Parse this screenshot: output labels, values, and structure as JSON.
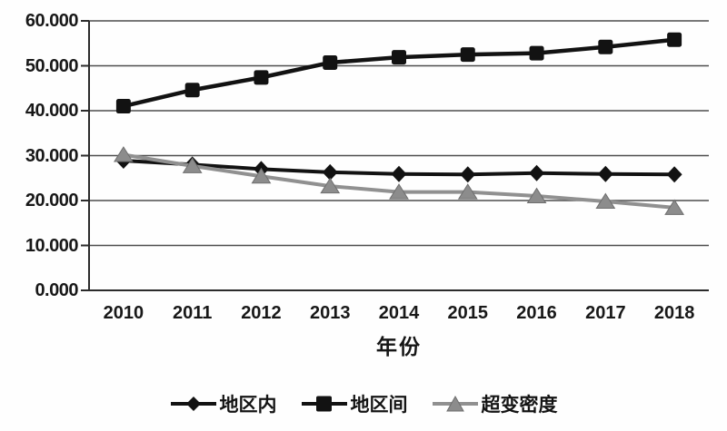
{
  "chart_data": {
    "type": "line",
    "title": "",
    "xlabel": "年份",
    "ylabel": "",
    "x": [
      2010,
      2011,
      2012,
      2013,
      2014,
      2015,
      2016,
      2017,
      2018
    ],
    "y_tick_labels": [
      "60.000",
      "50.000",
      "40.000",
      "30.000",
      "20.000",
      "10.000",
      "0.000"
    ],
    "ylim": [
      0,
      60
    ],
    "grid": "horizontal",
    "legend_position": "bottom",
    "series": [
      {
        "name": "地区内",
        "marker": "diamond",
        "color": "#121212",
        "values": [
          28.9,
          28.0,
          27.0,
          26.3,
          25.9,
          25.8,
          26.1,
          25.9,
          25.8
        ]
      },
      {
        "name": "地区间",
        "marker": "square",
        "color": "#121212",
        "values": [
          41.0,
          44.6,
          47.4,
          50.7,
          51.9,
          52.5,
          52.8,
          54.2,
          55.8
        ]
      },
      {
        "name": "超变密度",
        "marker": "triangle",
        "color": "#8c8c8c",
        "values": [
          30.2,
          27.7,
          25.4,
          23.2,
          21.9,
          21.9,
          21.0,
          19.8,
          18.4
        ]
      }
    ]
  },
  "colors": {
    "grid": "#4d4d4d",
    "axis": "#2b2b2b",
    "text": "#181818",
    "background": "#ffffff",
    "series_black": "#121212",
    "series_gray": "#8c8c8c"
  }
}
